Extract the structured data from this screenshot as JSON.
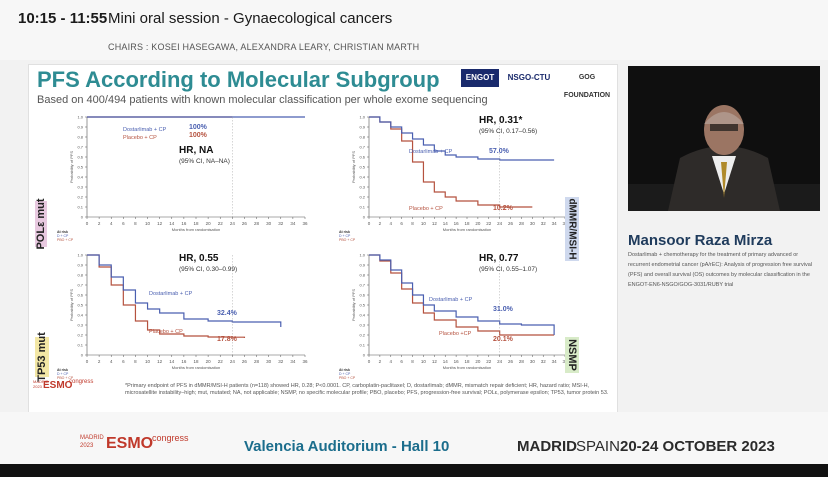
{
  "header": {
    "time": "10:15 - 11:55",
    "title": "Mini oral session - Gynaecological cancers",
    "chairs": "CHAIRS : KOSEI HASEGAWA, ALEXANDRA LEARY, CHRISTIAN MARTH"
  },
  "slide": {
    "title": "PFS According to Molecular Subgroup",
    "subtitle": "Based on 400/494 patients with known molecular classification per whole exome sequencing",
    "logos": [
      "ENGOT",
      "NSGO-CTU",
      "GOG FOUNDATION"
    ],
    "esmo_logo": {
      "top": "MADRID",
      "year": "2023",
      "brand": "ESMO",
      "tag": "congress"
    },
    "footnote": "*Primary endpoint of PFS in dMMR/MSI-H patients (n=118) showed HR, 0.28; P<0.0001. CP, carboplatin-paclitaxel; D, dostarlimab; dMMR, mismatch repair deficient; HR, hazard ratio; MSI-H, microsatellite instability–high; mut, mutated; NA, not applicable; NSMP, no specific molecular profile; PBO, placebo; PFS, progression-free survival; POLε, polymerase epsilon; TP53, tumor protein 53.",
    "axis_y": "Probability of PFS",
    "axis_x": "Months from randomisation",
    "at_risk": "At risk",
    "row_d": "D + CP",
    "row_p": "PBO + CP",
    "x_ticks": [
      "0",
      "2",
      "4",
      "6",
      "8",
      "10",
      "12",
      "14",
      "16",
      "18",
      "20",
      "22",
      "24",
      "26",
      "28",
      "30",
      "32",
      "34",
      "36"
    ],
    "y_ticks": [
      "0",
      "0.1",
      "0.2",
      "0.3",
      "0.4",
      "0.5",
      "0.6",
      "0.7",
      "0.8",
      "0.9",
      "1.0"
    ]
  },
  "panels": [
    {
      "label": "POLε mut",
      "hr": "HR, NA",
      "ci": "(95% CI, NA–NA)",
      "dost": "Dostarlimab + CP",
      "pbo": "Placebo + CP",
      "dost_pct": "100%",
      "pbo_pct": "100%"
    },
    {
      "label": "dMMR/MSI-H",
      "hr": "HR, 0.31*",
      "ci": "(95% CI, 0.17–0.56)",
      "dost": "Dostarlimab + CP",
      "pbo": "Placebo + CP",
      "dost_pct": "57.0%",
      "pbo_pct": "10.2%"
    },
    {
      "label": "TP53 mut",
      "hr": "HR, 0.55",
      "ci": "(95% CI, 0.30–0.99)",
      "dost": "Dostarlimab + CP",
      "pbo": "Placebo + CP",
      "dost_pct": "32.4%",
      "pbo_pct": "17.8%"
    },
    {
      "label": "NSMP",
      "hr": "HR, 0.77",
      "ci": "(95% CI, 0.55–1.07)",
      "dost": "Dostarlimab + CP",
      "pbo": "Placebo +CP",
      "dost_pct": "31.0%",
      "pbo_pct": "20.1%"
    }
  ],
  "speaker": {
    "name": "Mansoor Raza Mirza",
    "description": "Dostarlimab + chemotherapy for the treatment of primary advanced or recurrent endometrial cancer (pA/rEC): Analysis of progression free survival (PFS) and overall survival (OS) outcomes by molecular classification in the ENGOT-EN6-NSGO/GOG-3031/RUBY trial"
  },
  "footer": {
    "esmo": {
      "top": "MADRID",
      "year": "2023",
      "brand": "ESMO",
      "tag": "congress"
    },
    "venue": "Valencia Auditorium - Hall 10",
    "city_strong": "MADRID",
    "city_rest": "SPAIN",
    "dates": "20-24 OCTOBER 2023"
  },
  "colors": {
    "dost": "#4a5fb0",
    "pbo": "#b5523f",
    "accent": "#2e8c93"
  }
}
